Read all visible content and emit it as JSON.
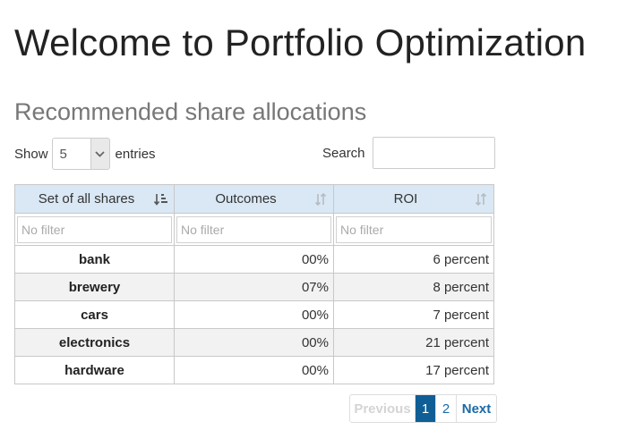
{
  "page": {
    "title": "Welcome to Portfolio Optimization"
  },
  "section": {
    "title": "Recommended share allocations"
  },
  "length_control": {
    "show_label": "Show",
    "value": "5",
    "entries_label": "entries"
  },
  "search": {
    "label": "Search",
    "value": ""
  },
  "table": {
    "columns": [
      {
        "label": "Set of all shares",
        "sort": "asc"
      },
      {
        "label": "Outcomes",
        "sort": "none"
      },
      {
        "label": "ROI",
        "sort": "none"
      }
    ],
    "filter_placeholder": "No filter",
    "rows": [
      {
        "share": "bank",
        "outcome": "00%",
        "roi": "6 percent"
      },
      {
        "share": "brewery",
        "outcome": "07%",
        "roi": "8 percent"
      },
      {
        "share": "cars",
        "outcome": "00%",
        "roi": "7 percent"
      },
      {
        "share": "electronics",
        "outcome": "00%",
        "roi": "21 percent"
      },
      {
        "share": "hardware",
        "outcome": "00%",
        "roi": "17 percent"
      }
    ]
  },
  "pagination": {
    "previous": "Previous",
    "pages": [
      "1",
      "2"
    ],
    "current": "1",
    "next": "Next"
  },
  "colors": {
    "header_bg": "#d9e8f4",
    "active_page": "#0f5f96",
    "link": "#1c6aa6"
  }
}
